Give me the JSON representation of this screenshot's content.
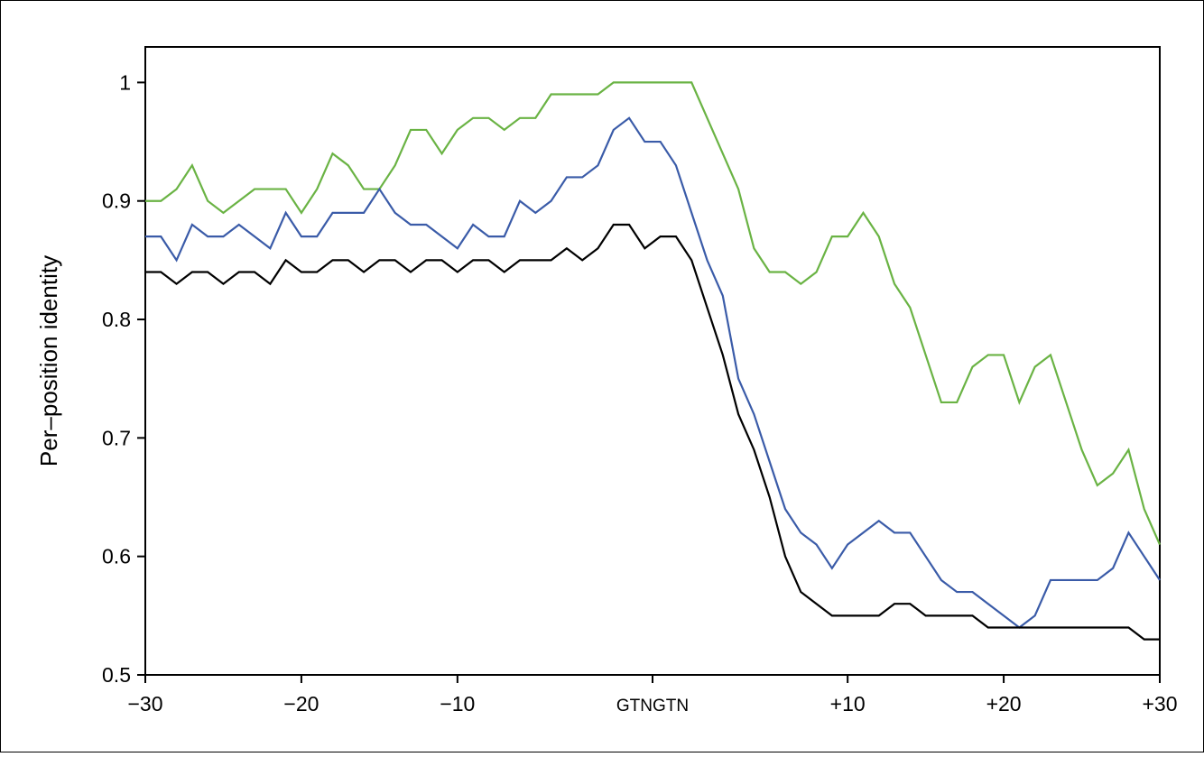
{
  "chart_data": {
    "type": "line",
    "y_label": "Per–position identity",
    "x": [
      0,
      1,
      2,
      3,
      4,
      5,
      6,
      7,
      8,
      9,
      10,
      11,
      12,
      13,
      14,
      15,
      16,
      17,
      18,
      19,
      20,
      21,
      22,
      23,
      24,
      25,
      26,
      27,
      28,
      29,
      30,
      31,
      32,
      33,
      34,
      35,
      36,
      37,
      38,
      39,
      40,
      41,
      42,
      43,
      44,
      45,
      46,
      47,
      48,
      49,
      50,
      51,
      52,
      53,
      54,
      55,
      56,
      57,
      58,
      59,
      60,
      61,
      62,
      63,
      64,
      65
    ],
    "xlim": [
      0,
      65
    ],
    "xticks": [
      {
        "value": 0,
        "label": "−30"
      },
      {
        "value": 10,
        "label": "−20"
      },
      {
        "value": 20,
        "label": "−10"
      },
      {
        "value": 32.5,
        "label": "GTNGTN"
      },
      {
        "value": 45,
        "label": "+10"
      },
      {
        "value": 55,
        "label": "+20"
      },
      {
        "value": 65,
        "label": "+30"
      }
    ],
    "ylim": [
      0.5,
      1.03
    ],
    "yticks": [
      0.5,
      0.6,
      0.7,
      0.8,
      0.9,
      1
    ],
    "series": [
      {
        "color": "#6ab344",
        "values": [
          0.9,
          0.9,
          0.91,
          0.93,
          0.9,
          0.89,
          0.9,
          0.91,
          0.91,
          0.91,
          0.89,
          0.91,
          0.94,
          0.93,
          0.91,
          0.91,
          0.93,
          0.96,
          0.96,
          0.94,
          0.96,
          0.97,
          0.97,
          0.96,
          0.97,
          0.97,
          0.99,
          0.99,
          0.99,
          0.99,
          1.0,
          1.0,
          1.0,
          1.0,
          1.0,
          1.0,
          0.97,
          0.94,
          0.91,
          0.86,
          0.84,
          0.84,
          0.83,
          0.84,
          0.87,
          0.87,
          0.89,
          0.87,
          0.83,
          0.81,
          0.77,
          0.73,
          0.73,
          0.76,
          0.77,
          0.77,
          0.73,
          0.76,
          0.77,
          0.73,
          0.69,
          0.66,
          0.67,
          0.69,
          0.64,
          0.61
        ]
      },
      {
        "color": "#3a5ba8",
        "values": [
          0.87,
          0.87,
          0.85,
          0.88,
          0.87,
          0.87,
          0.88,
          0.87,
          0.86,
          0.89,
          0.87,
          0.87,
          0.89,
          0.89,
          0.89,
          0.91,
          0.89,
          0.88,
          0.88,
          0.87,
          0.86,
          0.88,
          0.87,
          0.87,
          0.9,
          0.89,
          0.9,
          0.92,
          0.92,
          0.93,
          0.96,
          0.97,
          0.95,
          0.95,
          0.93,
          0.89,
          0.85,
          0.82,
          0.75,
          0.72,
          0.68,
          0.64,
          0.62,
          0.61,
          0.59,
          0.61,
          0.62,
          0.63,
          0.62,
          0.62,
          0.6,
          0.58,
          0.57,
          0.57,
          0.56,
          0.55,
          0.54,
          0.55,
          0.58,
          0.58,
          0.58,
          0.58,
          0.59,
          0.62,
          0.6,
          0.58
        ]
      },
      {
        "color": "#000000",
        "values": [
          0.84,
          0.84,
          0.83,
          0.84,
          0.84,
          0.83,
          0.84,
          0.84,
          0.83,
          0.85,
          0.84,
          0.84,
          0.85,
          0.85,
          0.84,
          0.85,
          0.85,
          0.84,
          0.85,
          0.85,
          0.84,
          0.85,
          0.85,
          0.84,
          0.85,
          0.85,
          0.85,
          0.86,
          0.85,
          0.86,
          0.88,
          0.88,
          0.86,
          0.87,
          0.87,
          0.85,
          0.81,
          0.77,
          0.72,
          0.69,
          0.65,
          0.6,
          0.57,
          0.56,
          0.55,
          0.55,
          0.55,
          0.55,
          0.56,
          0.56,
          0.55,
          0.55,
          0.55,
          0.55,
          0.54,
          0.54,
          0.54,
          0.54,
          0.54,
          0.54,
          0.54,
          0.54,
          0.54,
          0.54,
          0.53,
          0.53
        ]
      }
    ]
  }
}
